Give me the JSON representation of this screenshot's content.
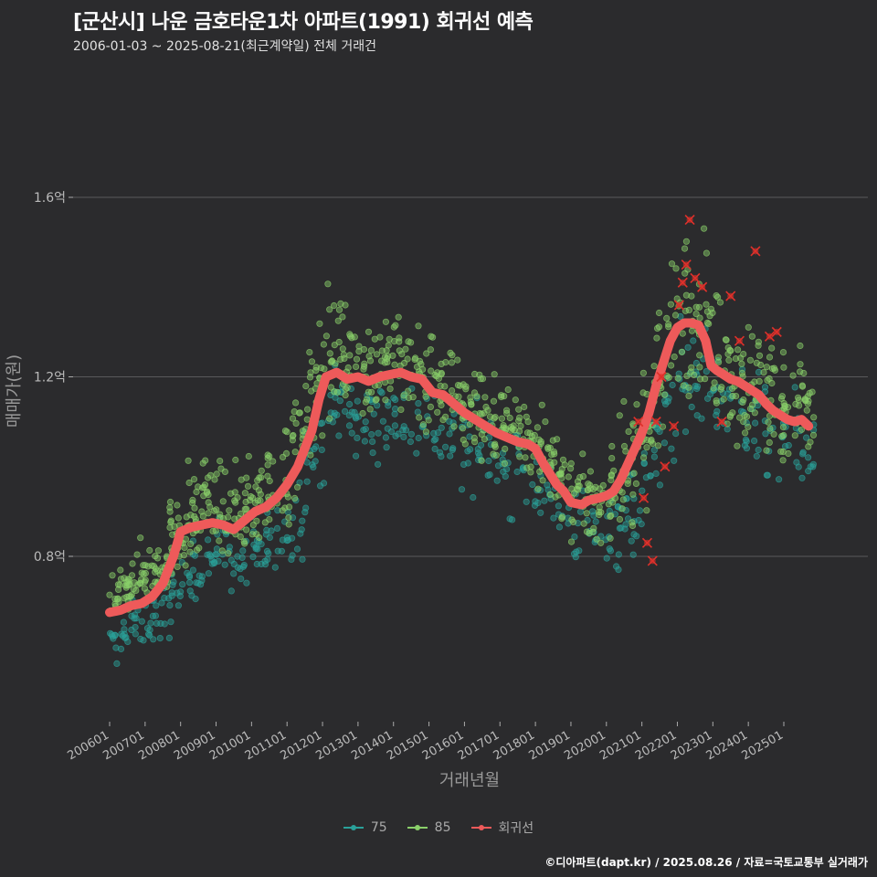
{
  "title": "[군산시] 나운 금호타운1차 아파트(1991) 회귀선 예측",
  "subtitle": "2006-01-03 ~ 2025-08-21(최근계약일) 전체 거래건",
  "credit": "©디아파트(dapt.kr) / 2025.08.26 / 자료=국토교통부 실거래가",
  "colors": {
    "background": "#2b2b2d",
    "grid": "#5a5a5c",
    "s75": "#2aa19a",
    "s85": "#8ad06a",
    "trend": "#ee5a5a",
    "highlight": "#e0302a"
  },
  "legend": [
    {
      "label": "75",
      "color": "#2aa19a"
    },
    {
      "label": "85",
      "color": "#8ad06a"
    },
    {
      "label": "회귀선",
      "color": "#ee5a5a"
    }
  ],
  "chart_data": {
    "type": "scatter",
    "title": "[군산시] 나운 금호타운1차 아파트(1991) 회귀선 예측",
    "xlabel": "거래년월",
    "ylabel": "매매가(원)",
    "xlim": [
      2006.0,
      2025.9
    ],
    "ylim": [
      0.43,
      1.85
    ],
    "xticks": [
      {
        "value": 2006.0,
        "label": "200601"
      },
      {
        "value": 2007.0,
        "label": "200701"
      },
      {
        "value": 2008.0,
        "label": "200801"
      },
      {
        "value": 2009.0,
        "label": "200901"
      },
      {
        "value": 2010.0,
        "label": "201001"
      },
      {
        "value": 2011.0,
        "label": "201101"
      },
      {
        "value": 2012.0,
        "label": "201201"
      },
      {
        "value": 2013.0,
        "label": "201301"
      },
      {
        "value": 2014.0,
        "label": "201401"
      },
      {
        "value": 2015.0,
        "label": "201501"
      },
      {
        "value": 2016.0,
        "label": "201601"
      },
      {
        "value": 2017.0,
        "label": "201701"
      },
      {
        "value": 2018.0,
        "label": "201801"
      },
      {
        "value": 2019.0,
        "label": "201901"
      },
      {
        "value": 2020.0,
        "label": "202001"
      },
      {
        "value": 2021.0,
        "label": "202101"
      },
      {
        "value": 2022.0,
        "label": "202201"
      },
      {
        "value": 2023.0,
        "label": "202301"
      },
      {
        "value": 2024.0,
        "label": "202401"
      },
      {
        "value": 2025.0,
        "label": "202501"
      }
    ],
    "yticks": [
      {
        "value": 0.8,
        "label": "0.8억"
      },
      {
        "value": 1.2,
        "label": "1.2억"
      },
      {
        "value": 1.6,
        "label": "1.6억"
      }
    ],
    "series": [
      {
        "name": "회귀선",
        "type": "line",
        "x": [
          2006.0,
          2006.3,
          2006.6,
          2006.9,
          2007.2,
          2007.5,
          2007.8,
          2008.0,
          2008.3,
          2008.6,
          2008.9,
          2009.2,
          2009.5,
          2009.8,
          2010.1,
          2010.4,
          2010.7,
          2011.0,
          2011.3,
          2011.5,
          2011.7,
          2011.9,
          2012.1,
          2012.4,
          2012.7,
          2013.0,
          2013.3,
          2013.6,
          2013.9,
          2014.2,
          2014.5,
          2014.8,
          2015.1,
          2015.4,
          2015.7,
          2016.0,
          2016.3,
          2016.6,
          2016.9,
          2017.2,
          2017.5,
          2017.8,
          2018.0,
          2018.2,
          2018.4,
          2018.6,
          2018.8,
          2019.0,
          2019.3,
          2019.5,
          2019.8,
          2020.0,
          2020.2,
          2020.4,
          2020.6,
          2020.8,
          2021.0,
          2021.2,
          2021.4,
          2021.6,
          2021.8,
          2022.0,
          2022.2,
          2022.4,
          2022.6,
          2022.8,
          2022.95,
          2023.1,
          2023.3,
          2023.5,
          2023.7,
          2023.9,
          2024.1,
          2024.3,
          2024.5,
          2024.7,
          2024.9,
          2025.1,
          2025.3,
          2025.5,
          2025.7
        ],
        "values": [
          0.675,
          0.68,
          0.69,
          0.695,
          0.71,
          0.74,
          0.8,
          0.855,
          0.865,
          0.87,
          0.875,
          0.87,
          0.86,
          0.88,
          0.9,
          0.91,
          0.93,
          0.96,
          1.0,
          1.04,
          1.08,
          1.15,
          1.2,
          1.21,
          1.195,
          1.2,
          1.19,
          1.2,
          1.205,
          1.21,
          1.2,
          1.195,
          1.165,
          1.16,
          1.14,
          1.12,
          1.105,
          1.09,
          1.075,
          1.065,
          1.055,
          1.05,
          1.04,
          1.01,
          0.985,
          0.96,
          0.945,
          0.92,
          0.915,
          0.925,
          0.93,
          0.935,
          0.945,
          0.97,
          1.005,
          1.04,
          1.075,
          1.12,
          1.18,
          1.23,
          1.28,
          1.31,
          1.32,
          1.32,
          1.315,
          1.28,
          1.225,
          1.215,
          1.205,
          1.195,
          1.19,
          1.18,
          1.17,
          1.16,
          1.14,
          1.125,
          1.115,
          1.105,
          1.1,
          1.105,
          1.09
        ]
      },
      {
        "name": "85",
        "type": "scatter-cloud",
        "x": [
          2006.1,
          2006.4,
          2006.6,
          2006.9,
          2007.2,
          2007.5,
          2007.8,
          2008.0,
          2008.3,
          2008.5,
          2008.8,
          2009.1,
          2009.4,
          2009.7,
          2010.0,
          2010.3,
          2010.6,
          2011.0,
          2011.3,
          2011.6,
          2011.9,
          2012.2,
          2012.5,
          2012.8,
          2013.1,
          2013.4,
          2013.7,
          2014.0,
          2014.3,
          2014.6,
          2014.9,
          2015.2,
          2015.5,
          2015.8,
          2016.1,
          2016.4,
          2016.7,
          2017.0,
          2017.3,
          2017.6,
          2017.9,
          2018.2,
          2018.5,
          2018.8,
          2019.1,
          2019.4,
          2019.7,
          2020.0,
          2020.3,
          2020.6,
          2020.9,
          2021.2,
          2021.5,
          2021.8,
          2022.1,
          2022.4,
          2022.7,
          2023.0,
          2023.3,
          2023.6,
          2023.9,
          2024.2,
          2024.5,
          2024.8,
          2025.1,
          2025.4,
          2025.7
        ],
        "values": [
          0.7,
          0.72,
          0.74,
          0.76,
          0.77,
          0.79,
          0.84,
          0.86,
          0.89,
          0.9,
          0.92,
          0.91,
          0.89,
          0.9,
          0.92,
          0.93,
          0.96,
          0.98,
          1.05,
          1.12,
          1.2,
          1.26,
          1.27,
          1.25,
          1.23,
          1.22,
          1.22,
          1.24,
          1.23,
          1.22,
          1.2,
          1.18,
          1.18,
          1.16,
          1.13,
          1.12,
          1.1,
          1.1,
          1.09,
          1.07,
          1.07,
          1.04,
          1.0,
          0.96,
          0.93,
          0.92,
          0.92,
          0.94,
          0.96,
          0.98,
          1.04,
          1.1,
          1.18,
          1.26,
          1.35,
          1.36,
          1.34,
          1.27,
          1.25,
          1.21,
          1.2,
          1.18,
          1.17,
          1.14,
          1.13,
          1.14,
          1.12
        ],
        "spread": [
          0.05,
          0.05,
          0.06,
          0.07,
          0.07,
          0.08,
          0.09,
          0.1,
          0.12,
          0.12,
          0.1,
          0.09,
          0.09,
          0.1,
          0.1,
          0.1,
          0.1,
          0.12,
          0.14,
          0.14,
          0.14,
          0.14,
          0.13,
          0.13,
          0.12,
          0.12,
          0.13,
          0.13,
          0.14,
          0.14,
          0.13,
          0.12,
          0.12,
          0.12,
          0.11,
          0.11,
          0.11,
          0.1,
          0.1,
          0.1,
          0.1,
          0.1,
          0.09,
          0.08,
          0.08,
          0.08,
          0.09,
          0.1,
          0.12,
          0.14,
          0.15,
          0.17,
          0.2,
          0.2,
          0.2,
          0.18,
          0.17,
          0.16,
          0.15,
          0.15,
          0.15,
          0.15,
          0.15,
          0.14,
          0.14,
          0.14,
          0.14
        ]
      },
      {
        "name": "75",
        "type": "scatter-cloud",
        "x": [
          2006.1,
          2006.4,
          2006.7,
          2007.0,
          2007.3,
          2007.6,
          2007.9,
          2008.2,
          2008.5,
          2008.8,
          2009.1,
          2009.4,
          2009.7,
          2010.0,
          2010.3,
          2010.6,
          2011.0,
          2011.3,
          2011.6,
          2011.9,
          2012.2,
          2012.5,
          2012.8,
          2013.1,
          2013.4,
          2013.7,
          2014.0,
          2014.4,
          2014.8,
          2015.2,
          2015.6,
          2016.0,
          2016.4,
          2016.8,
          2017.2,
          2017.6,
          2018.0,
          2018.4,
          2018.8,
          2019.2,
          2019.6,
          2020.0,
          2020.3,
          2020.6,
          2020.9,
          2021.2,
          2021.5,
          2021.8,
          2022.1,
          2022.4,
          2022.7,
          2023.0,
          2023.4,
          2023.8,
          2024.2,
          2024.6,
          2025.0,
          2025.4,
          2025.7
        ],
        "values": [
          0.6,
          0.63,
          0.65,
          0.65,
          0.66,
          0.68,
          0.72,
          0.76,
          0.78,
          0.8,
          0.82,
          0.8,
          0.78,
          0.8,
          0.82,
          0.84,
          0.86,
          0.9,
          0.98,
          1.06,
          1.13,
          1.14,
          1.12,
          1.1,
          1.1,
          1.11,
          1.12,
          1.12,
          1.1,
          1.08,
          1.06,
          1.04,
          1.03,
          1.02,
          1.0,
          0.99,
          0.97,
          0.94,
          0.9,
          0.87,
          0.85,
          0.86,
          0.87,
          0.88,
          0.93,
          0.98,
          1.06,
          1.12,
          1.2,
          1.22,
          1.2,
          1.16,
          1.13,
          1.1,
          1.08,
          1.06,
          1.05,
          1.04,
          1.02
        ],
        "spread": [
          0.05,
          0.05,
          0.05,
          0.05,
          0.06,
          0.06,
          0.06,
          0.07,
          0.07,
          0.07,
          0.08,
          0.08,
          0.08,
          0.08,
          0.08,
          0.08,
          0.09,
          0.1,
          0.1,
          0.1,
          0.1,
          0.1,
          0.1,
          0.1,
          0.1,
          0.1,
          0.1,
          0.1,
          0.1,
          0.1,
          0.1,
          0.1,
          0.1,
          0.1,
          0.1,
          0.1,
          0.1,
          0.1,
          0.09,
          0.09,
          0.09,
          0.09,
          0.1,
          0.12,
          0.12,
          0.13,
          0.13,
          0.13,
          0.13,
          0.13,
          0.12,
          0.12,
          0.12,
          0.12,
          0.12,
          0.12,
          0.12,
          0.12,
          0.12
        ]
      },
      {
        "name": "highlight",
        "type": "marker-x",
        "x": [
          2020.9,
          2021.05,
          2021.15,
          2021.3,
          2021.4,
          2021.55,
          2021.65,
          2021.9,
          2022.05,
          2022.15,
          2022.25,
          2022.35,
          2022.5,
          2022.7,
          2023.25,
          2023.5,
          2023.75,
          2024.2,
          2024.6,
          2024.8
        ],
        "values": [
          1.1,
          0.93,
          0.83,
          0.79,
          1.1,
          1.2,
          1.0,
          1.09,
          1.36,
          1.41,
          1.45,
          1.55,
          1.42,
          1.4,
          1.1,
          1.38,
          1.28,
          1.48,
          1.29,
          1.3
        ]
      }
    ]
  }
}
